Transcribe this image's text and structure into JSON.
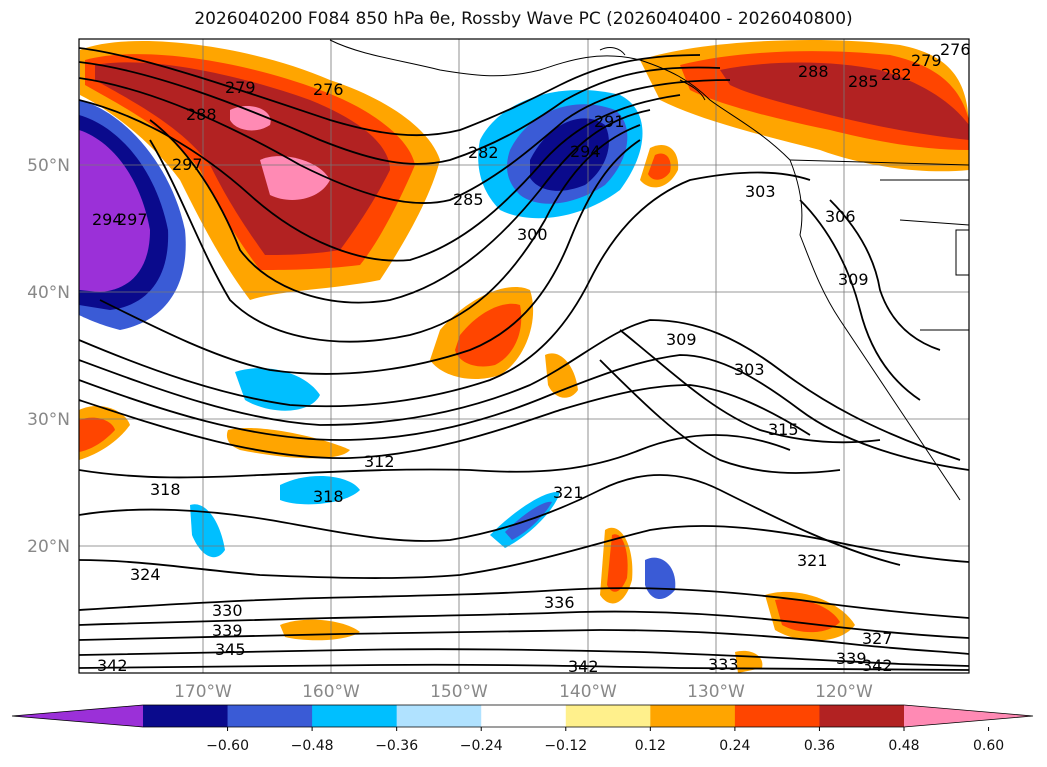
{
  "title": "2026040200 F084 850 hPa θe, Rossby Wave PC (2026040400 - 2026040800)",
  "map": {
    "lat_labels": [
      "50°N",
      "40°N",
      "30°N",
      "20°N"
    ],
    "lon_labels": [
      "170°W",
      "160°W",
      "150°W",
      "140°W",
      "130°W",
      "120°W"
    ],
    "contour_labels": [
      {
        "text": "276"
      },
      {
        "text": "279"
      },
      {
        "text": "288"
      },
      {
        "text": "297"
      },
      {
        "text": "294"
      },
      {
        "text": "297"
      },
      {
        "text": "282"
      },
      {
        "text": "291"
      },
      {
        "text": "294"
      },
      {
        "text": "285"
      },
      {
        "text": "300"
      },
      {
        "text": "288"
      },
      {
        "text": "285"
      },
      {
        "text": "282"
      },
      {
        "text": "279"
      },
      {
        "text": "276"
      },
      {
        "text": "303"
      },
      {
        "text": "306"
      },
      {
        "text": "309"
      },
      {
        "text": "309"
      },
      {
        "text": "303"
      },
      {
        "text": "315"
      },
      {
        "text": "312"
      },
      {
        "text": "318"
      },
      {
        "text": "318"
      },
      {
        "text": "321"
      },
      {
        "text": "324"
      },
      {
        "text": "321"
      },
      {
        "text": "336"
      },
      {
        "text": "330"
      },
      {
        "text": "339"
      },
      {
        "text": "345"
      },
      {
        "text": "342"
      },
      {
        "text": "342"
      },
      {
        "text": "333"
      },
      {
        "text": "327"
      },
      {
        "text": "339"
      },
      {
        "text": "342"
      }
    ]
  },
  "colorbar": {
    "colors": [
      "#9b30d8",
      "#0a0a8c",
      "#3a5bd6",
      "#00bfff",
      "#b0e2ff",
      "#ffffff",
      "#fff08c",
      "#ffa500",
      "#ff4500",
      "#b22222",
      "#ff8ab4"
    ],
    "tick_labels": [
      "−0.60",
      "−0.48",
      "−0.36",
      "−0.24",
      "−0.12",
      "0.12",
      "0.24",
      "0.36",
      "0.48",
      "0.60"
    ]
  }
}
